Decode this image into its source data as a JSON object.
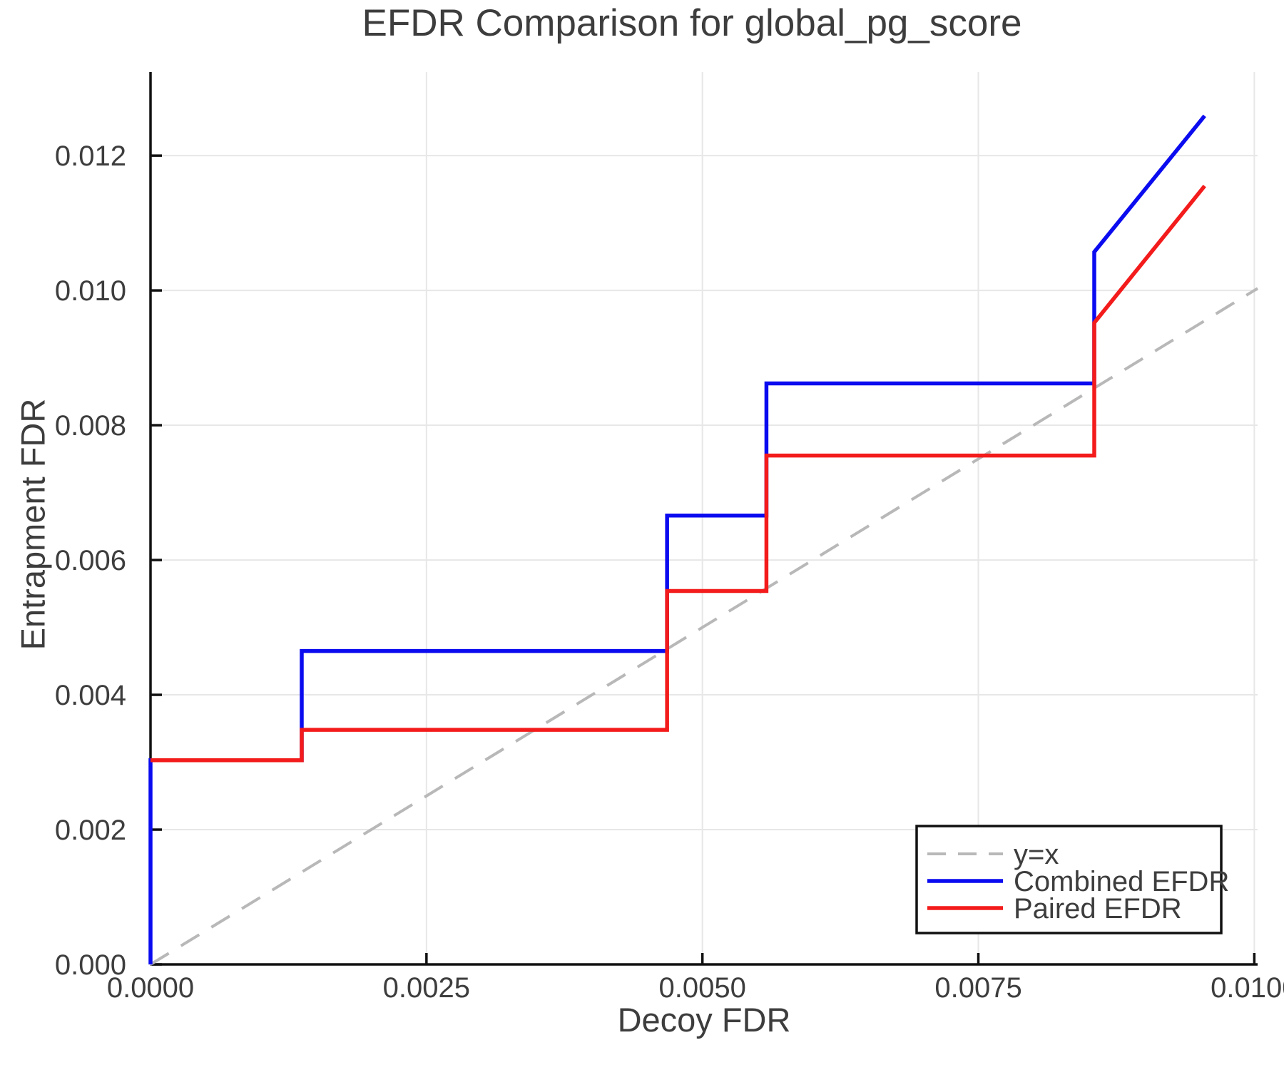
{
  "chart_data": {
    "type": "line",
    "title": "EFDR Comparison for global_pg_score",
    "xlabel": "Decoy FDR",
    "ylabel": "Entrapment FDR",
    "xlim": [
      0.0,
      0.01003
    ],
    "ylim": [
      0.0,
      0.01324
    ],
    "grid": true,
    "legend_position": "lower right",
    "x_ticks": {
      "values": [
        0.0,
        0.0025,
        0.005,
        0.0075,
        0.01
      ],
      "labels": [
        "0.0000",
        "0.0025",
        "0.0050",
        "0.0075",
        "0.0100"
      ]
    },
    "y_ticks": {
      "values": [
        0.0,
        0.002,
        0.004,
        0.006,
        0.008,
        0.01,
        0.012
      ],
      "labels": [
        "0.000",
        "0.002",
        "0.004",
        "0.006",
        "0.008",
        "0.010",
        "0.012"
      ]
    },
    "series": [
      {
        "name": "y=x",
        "color": "#b8b8b8",
        "style": "dashed",
        "width": 4,
        "points": [
          [
            0.0,
            0.0
          ],
          [
            0.01003,
            0.01003
          ]
        ]
      },
      {
        "name": "Combined EFDR",
        "color": "#0b0bf0",
        "style": "solid",
        "width": 5.5,
        "points": [
          [
            0.0,
            0.0
          ],
          [
            0.0,
            0.00303
          ],
          [
            0.00137,
            0.00303
          ],
          [
            0.00137,
            0.00465
          ],
          [
            0.00468,
            0.00465
          ],
          [
            0.00468,
            0.00666
          ],
          [
            0.00558,
            0.00666
          ],
          [
            0.00558,
            0.00862
          ],
          [
            0.00855,
            0.00862
          ],
          [
            0.00855,
            0.01057
          ],
          [
            0.00955,
            0.01259
          ]
        ]
      },
      {
        "name": "Paired EFDR",
        "color": "#f31b1b",
        "style": "solid",
        "width": 5.5,
        "points": [
          [
            0.0,
            0.00303
          ],
          [
            0.00137,
            0.00303
          ],
          [
            0.00137,
            0.00348
          ],
          [
            0.00468,
            0.00348
          ],
          [
            0.00468,
            0.00554
          ],
          [
            0.00558,
            0.00554
          ],
          [
            0.00558,
            0.00755
          ],
          [
            0.00855,
            0.00755
          ],
          [
            0.00855,
            0.00952
          ],
          [
            0.00955,
            0.01155
          ]
        ]
      }
    ],
    "legend": {
      "entries": [
        "y=x",
        "Combined EFDR",
        "Paired EFDR"
      ]
    }
  },
  "style": {
    "text_color": "#3d3d3d",
    "spine_color": "#111111",
    "tick_color": "#111111",
    "grid_color": "#e7e7e7",
    "legend_border_color": "#111111",
    "legend_background": "#ffffff",
    "background": "#ffffff"
  }
}
